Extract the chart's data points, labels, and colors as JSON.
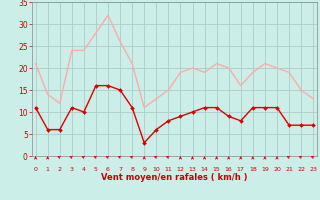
{
  "hours": [
    0,
    1,
    2,
    3,
    4,
    5,
    6,
    7,
    8,
    9,
    10,
    11,
    12,
    13,
    14,
    15,
    16,
    17,
    18,
    19,
    20,
    21,
    22,
    23
  ],
  "wind_mean": [
    11,
    6,
    6,
    11,
    10,
    16,
    16,
    15,
    11,
    3,
    6,
    8,
    9,
    10,
    11,
    11,
    9,
    8,
    11,
    11,
    11,
    7,
    7,
    7
  ],
  "wind_gust": [
    21,
    14,
    12,
    24,
    24,
    28,
    32,
    26,
    21,
    11,
    13,
    15,
    19,
    20,
    19,
    21,
    20,
    16,
    19,
    21,
    20,
    19,
    15,
    13
  ],
  "mean_color": "#dd0000",
  "gust_color": "#ffaaaa",
  "bg_color": "#cceee8",
  "grid_color": "#aacccc",
  "xlabel": "Vent moyen/en rafales ( km/h )",
  "xlabel_color": "#cc0000",
  "tick_color": "#cc0000",
  "ylim": [
    0,
    35
  ],
  "yticks": [
    0,
    5,
    10,
    15,
    20,
    25,
    30,
    35
  ],
  "arrow_directions": [
    180,
    180,
    225,
    225,
    225,
    225,
    225,
    225,
    225,
    180,
    225,
    225,
    180,
    180,
    180,
    180,
    180,
    180,
    180,
    180,
    180,
    225,
    225,
    225
  ]
}
